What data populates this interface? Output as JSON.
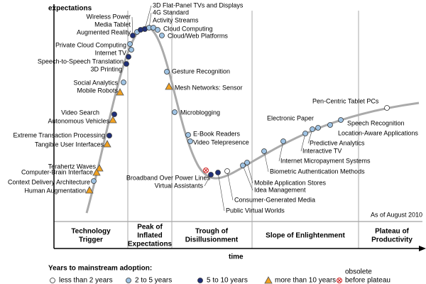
{
  "axes": {
    "y_label": "expectations",
    "x_label": "time"
  },
  "note": "As of August 2010",
  "phases": [
    [
      "Technology",
      "Trigger"
    ],
    [
      "Peak of",
      "Inflated",
      "Expectations"
    ],
    [
      "Trough of",
      "Disillusionment"
    ],
    [
      "Slope of Enlightenment"
    ],
    [
      "Plateau of",
      "Productivity"
    ]
  ],
  "legend": {
    "title": "Years to mainstream adoption:",
    "items": [
      [
        "less than 2 years"
      ],
      [
        "2 to 5 years"
      ],
      [
        "5 to 10 years"
      ],
      [
        "more than 10 years"
      ],
      [
        "obsolete",
        "before plateau"
      ]
    ]
  },
  "technologies": [
    {
      "label": "3D Flat-Panel TVs and Displays",
      "class": 2
    },
    {
      "label": "4G Standard",
      "class": 1
    },
    {
      "label": "Activity Streams",
      "class": 1
    },
    {
      "label": "Wireless Power",
      "class": 2
    },
    {
      "label": "Media Tablet",
      "class": 1
    },
    {
      "label": "Augmented Reality",
      "class": 2
    },
    {
      "label": "Cloud Computing",
      "class": 1
    },
    {
      "label": "Cloud/Web Platforms",
      "class": 1
    },
    {
      "label": "Private Cloud Computing",
      "class": 1
    },
    {
      "label": "Internet TV",
      "class": 1
    },
    {
      "label": "Speech-to-Speech Translation",
      "class": 2
    },
    {
      "label": "3D Printing",
      "class": 2
    },
    {
      "label": "Social Analytics",
      "class": 1
    },
    {
      "label": "Mobile Robots",
      "class": 3
    },
    {
      "label": "Gesture Recognition",
      "class": 1
    },
    {
      "label": "Mesh Networks: Sensor",
      "class": 3
    },
    {
      "label": "Microblogging",
      "class": 1
    },
    {
      "label": "Video Search",
      "class": 2
    },
    {
      "label": "Autonomous Vehicles",
      "class": 3
    },
    {
      "label": "E-Book Readers",
      "class": 1
    },
    {
      "label": "Video Telepresence",
      "class": 1
    },
    {
      "label": "Extreme Transaction Processing",
      "class": 2
    },
    {
      "label": "Tangible User Interfaces",
      "class": 3
    },
    {
      "label": "Terahertz Waves",
      "class": 3
    },
    {
      "label": "Computer-Brain Interface",
      "class": 3
    },
    {
      "label": "Context Delivery Architecture",
      "class": 1
    },
    {
      "label": "Human Augmentation",
      "class": 3
    },
    {
      "label": "Broadband Over Power Lines",
      "class": 4
    },
    {
      "label": "Virtual Assistants",
      "class": 2
    },
    {
      "label": "Public Virtual Worlds",
      "class": 2
    },
    {
      "label": "Consumer-Generated Media",
      "class": 0
    },
    {
      "label": "Idea Management",
      "class": 1
    },
    {
      "label": "Mobile Application Stores",
      "class": 1
    },
    {
      "label": "Biometric Authentication Methods",
      "class": 1
    },
    {
      "label": "Internet Micropayment Systems",
      "class": 1
    },
    {
      "label": "Interactive TV",
      "class": 1
    },
    {
      "label": "Predictive Analytics",
      "class": 1
    },
    {
      "label": "Electronic Paper",
      "class": 1
    },
    {
      "label": "Location-Aware Applications",
      "class": 1
    },
    {
      "label": "Speech Recognition",
      "class": 1
    },
    {
      "label": "Pen-Centric Tablet PCs",
      "class": 0
    }
  ]
}
